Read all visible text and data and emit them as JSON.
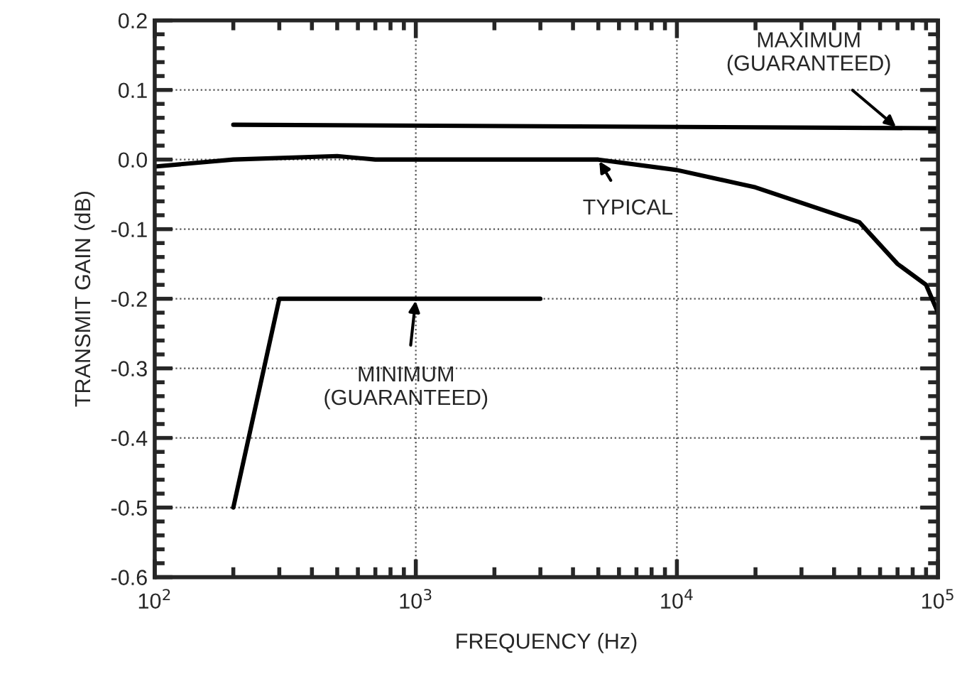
{
  "chart_data": {
    "type": "line",
    "xlabel": "FREQUENCY (Hz)",
    "ylabel": "TRANSMIT GAIN (dB)",
    "log": "x",
    "xlim": [
      100,
      100000
    ],
    "xticks": [
      {
        "value": 100,
        "label": "10$^{2}$"
      },
      {
        "value": 1000,
        "label": "10$^{3}$"
      },
      {
        "value": 10000,
        "label": "10$^{4}$"
      },
      {
        "value": 100000,
        "label": "10$^{5}$"
      }
    ],
    "ylim": [
      -0.6,
      0.2
    ],
    "yticks": [
      -0.6,
      -0.5,
      -0.4,
      -0.3,
      -0.2,
      -0.1,
      {
        "value": 0,
        "label": "0.0"
      },
      0.1,
      0.2
    ],
    "grid": true,
    "line_style": "solid",
    "marker": "none",
    "series": [
      {
        "color": "#000000",
        "x": [
          200,
          100000
        ],
        "values": [
          0.05,
          0.045
        ]
      },
      {
        "color": "#000000",
        "x": [
          100,
          200,
          500,
          700,
          5000,
          10000,
          20000,
          50000,
          70000,
          90000,
          100000
        ],
        "values": [
          -0.01,
          0.0,
          0.005,
          0.0,
          0.0,
          -0.015,
          -0.04,
          -0.09,
          -0.15,
          -0.18,
          -0.22
        ]
      },
      {
        "color": "#000000",
        "x": [
          200,
          300,
          3000
        ],
        "values": [
          -0.5,
          -0.2,
          -0.2
        ]
      }
    ],
    "annotations": [
      {
        "text": "MAXIMUM\n(GUARANTEED)",
        "x": 70000,
        "y": 0.045
      },
      {
        "text": "TYPICAL",
        "x": 5000,
        "y": 0.0
      },
      {
        "text": "MINIMUM\n(GUARANTEED)",
        "x": 1000,
        "y": -0.2
      }
    ]
  }
}
